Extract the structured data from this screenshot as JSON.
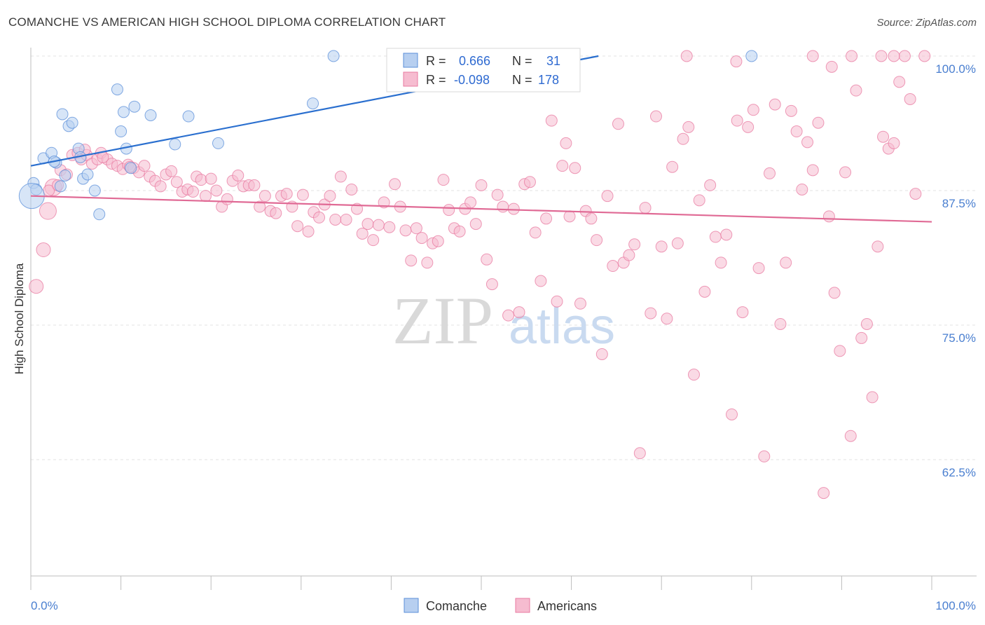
{
  "title": "COMANCHE VS AMERICAN HIGH SCHOOL DIPLOMA CORRELATION CHART",
  "source": "Source: ZipAtlas.com",
  "watermark": {
    "zip": "ZIP",
    "atlas": "atlas"
  },
  "colors": {
    "comanche": "#5b8fd9",
    "comanche_fill": "#b7cff0",
    "americans": "#e87aa0",
    "americans_fill": "#f6bcd0",
    "blue_text": "#2e6ad1",
    "pink_line": "#e06a95",
    "blue_line": "#2a6fcf"
  },
  "legend": {
    "r_label": "R =",
    "n_label": "N =",
    "rows": [
      {
        "series": "Comanche",
        "r": "0.666",
        "n": "31"
      },
      {
        "series": "Americans",
        "r": "-0.098",
        "n": "178"
      }
    ]
  },
  "bottom_legend": [
    "Comanche",
    "Americans"
  ],
  "chart_data": {
    "type": "scatter",
    "title": "COMANCHE VS AMERICAN HIGH SCHOOL DIPLOMA CORRELATION CHART",
    "xlabel": "",
    "ylabel": "High School Diploma",
    "xlim": [
      0,
      100
    ],
    "ylim": [
      50,
      101
    ],
    "x_tick_labels": [
      "0.0%",
      "100.0%"
    ],
    "y_ticks": [
      62.5,
      75.0,
      87.5,
      100.0
    ],
    "y_tick_labels": [
      "62.5%",
      "75.0%",
      "87.5%",
      "100.0%"
    ],
    "grid": true,
    "legend_position": "top-center",
    "series": [
      {
        "name": "Comanche",
        "r": 0.666,
        "n": 31,
        "trend": {
          "x": [
            0,
            63
          ],
          "y": [
            89.8,
            100.0
          ]
        },
        "points": [
          [
            0.3,
            88.2
          ],
          [
            0.6,
            87.6
          ],
          [
            1.4,
            90.5
          ],
          [
            2.3,
            91.0
          ],
          [
            2.8,
            90.1
          ],
          [
            3.3,
            87.9
          ],
          [
            3.5,
            94.6
          ],
          [
            3.8,
            88.9
          ],
          [
            4.2,
            93.5
          ],
          [
            4.6,
            93.8
          ],
          [
            5.3,
            91.4
          ],
          [
            5.5,
            90.6
          ],
          [
            5.8,
            88.6
          ],
          [
            6.3,
            89.0
          ],
          [
            7.1,
            87.5
          ],
          [
            7.6,
            85.3
          ],
          [
            9.6,
            96.9
          ],
          [
            10.0,
            93.0
          ],
          [
            10.3,
            94.8
          ],
          [
            10.6,
            91.4
          ],
          [
            11.1,
            89.6
          ],
          [
            11.5,
            95.3
          ],
          [
            13.3,
            94.5
          ],
          [
            16.0,
            91.8
          ],
          [
            17.5,
            94.4
          ],
          [
            20.8,
            91.9
          ],
          [
            31.3,
            95.6
          ],
          [
            33.6,
            100.0
          ],
          [
            80.0,
            100.0
          ],
          [
            0.1,
            87.0
          ],
          [
            2.6,
            90.2
          ]
        ]
      },
      {
        "name": "Americans",
        "r": -0.098,
        "n": 178,
        "trend": {
          "x": [
            0,
            100
          ],
          "y": [
            87.0,
            84.6
          ]
        },
        "points": [
          [
            0.6,
            78.6
          ],
          [
            1.4,
            82.0
          ],
          [
            1.9,
            85.6
          ],
          [
            2.5,
            87.8
          ],
          [
            3.3,
            89.4
          ],
          [
            4.0,
            89.0
          ],
          [
            4.6,
            90.8
          ],
          [
            5.2,
            91.0
          ],
          [
            5.6,
            90.4
          ],
          [
            6.2,
            90.8
          ],
          [
            6.8,
            90.0
          ],
          [
            7.4,
            90.4
          ],
          [
            7.8,
            91.0
          ],
          [
            8.5,
            90.4
          ],
          [
            9.0,
            90.0
          ],
          [
            9.6,
            89.8
          ],
          [
            10.2,
            89.5
          ],
          [
            10.8,
            89.9
          ],
          [
            11.4,
            89.6
          ],
          [
            12.0,
            89.2
          ],
          [
            12.6,
            89.8
          ],
          [
            13.2,
            88.8
          ],
          [
            13.8,
            88.4
          ],
          [
            14.4,
            87.9
          ],
          [
            15.0,
            89.0
          ],
          [
            15.6,
            89.3
          ],
          [
            16.2,
            88.3
          ],
          [
            16.8,
            87.4
          ],
          [
            17.4,
            87.6
          ],
          [
            18.0,
            87.4
          ],
          [
            18.4,
            88.8
          ],
          [
            18.9,
            88.5
          ],
          [
            19.4,
            87.0
          ],
          [
            20.0,
            88.6
          ],
          [
            20.6,
            87.5
          ],
          [
            21.2,
            86.0
          ],
          [
            21.8,
            86.7
          ],
          [
            22.4,
            88.4
          ],
          [
            23.0,
            88.9
          ],
          [
            23.6,
            87.9
          ],
          [
            24.2,
            88.0
          ],
          [
            24.8,
            88.0
          ],
          [
            25.4,
            86.0
          ],
          [
            26.0,
            87.0
          ],
          [
            26.6,
            85.6
          ],
          [
            27.2,
            85.4
          ],
          [
            27.8,
            87.0
          ],
          [
            28.4,
            87.2
          ],
          [
            29.0,
            86.0
          ],
          [
            29.6,
            84.2
          ],
          [
            30.2,
            87.1
          ],
          [
            30.8,
            83.7
          ],
          [
            31.4,
            85.5
          ],
          [
            32.0,
            85.0
          ],
          [
            32.6,
            86.2
          ],
          [
            33.2,
            87.0
          ],
          [
            33.8,
            84.8
          ],
          [
            34.4,
            88.8
          ],
          [
            35.0,
            84.8
          ],
          [
            35.6,
            87.6
          ],
          [
            36.2,
            85.8
          ],
          [
            36.8,
            83.5
          ],
          [
            37.4,
            84.4
          ],
          [
            38.0,
            82.9
          ],
          [
            38.6,
            84.3
          ],
          [
            39.2,
            86.4
          ],
          [
            39.8,
            84.1
          ],
          [
            40.4,
            88.1
          ],
          [
            41.0,
            86.0
          ],
          [
            41.6,
            83.8
          ],
          [
            42.2,
            81.0
          ],
          [
            42.8,
            84.0
          ],
          [
            43.4,
            83.1
          ],
          [
            44.0,
            80.8
          ],
          [
            44.6,
            82.6
          ],
          [
            45.2,
            82.8
          ],
          [
            45.8,
            88.5
          ],
          [
            46.4,
            85.7
          ],
          [
            47.0,
            84.0
          ],
          [
            47.6,
            83.7
          ],
          [
            48.2,
            85.8
          ],
          [
            48.8,
            86.4
          ],
          [
            49.4,
            84.4
          ],
          [
            50.0,
            88.0
          ],
          [
            50.6,
            81.1
          ],
          [
            51.2,
            78.8
          ],
          [
            51.8,
            87.1
          ],
          [
            52.4,
            86.0
          ],
          [
            53.0,
            75.9
          ],
          [
            53.6,
            85.8
          ],
          [
            54.2,
            76.2
          ],
          [
            54.8,
            88.1
          ],
          [
            55.4,
            88.3
          ],
          [
            56.0,
            83.6
          ],
          [
            56.6,
            79.1
          ],
          [
            57.2,
            84.9
          ],
          [
            57.8,
            94.0
          ],
          [
            58.4,
            77.2
          ],
          [
            59.0,
            89.8
          ],
          [
            59.4,
            91.9
          ],
          [
            59.8,
            85.1
          ],
          [
            60.4,
            89.6
          ],
          [
            61.0,
            77.0
          ],
          [
            61.6,
            85.6
          ],
          [
            62.2,
            84.9
          ],
          [
            62.8,
            82.9
          ],
          [
            63.4,
            72.3
          ],
          [
            64.0,
            87.0
          ],
          [
            64.6,
            80.5
          ],
          [
            65.2,
            93.7
          ],
          [
            65.8,
            80.8
          ],
          [
            66.4,
            81.5
          ],
          [
            67.0,
            82.5
          ],
          [
            67.6,
            63.1
          ],
          [
            68.2,
            85.9
          ],
          [
            68.8,
            76.1
          ],
          [
            69.4,
            94.4
          ],
          [
            70.0,
            82.3
          ],
          [
            70.6,
            75.6
          ],
          [
            71.2,
            89.7
          ],
          [
            71.8,
            82.6
          ],
          [
            72.4,
            92.3
          ],
          [
            73.0,
            93.4
          ],
          [
            73.6,
            70.4
          ],
          [
            74.2,
            86.6
          ],
          [
            74.8,
            78.1
          ],
          [
            75.4,
            88.0
          ],
          [
            76.0,
            83.2
          ],
          [
            76.6,
            80.8
          ],
          [
            77.2,
            83.4
          ],
          [
            77.8,
            66.7
          ],
          [
            78.4,
            94.0
          ],
          [
            79.0,
            76.2
          ],
          [
            79.6,
            93.4
          ],
          [
            80.2,
            95.0
          ],
          [
            80.8,
            80.3
          ],
          [
            81.4,
            62.8
          ],
          [
            82.0,
            89.1
          ],
          [
            82.6,
            95.5
          ],
          [
            83.2,
            75.1
          ],
          [
            83.8,
            80.8
          ],
          [
            84.4,
            94.9
          ],
          [
            85.0,
            93.0
          ],
          [
            85.6,
            87.6
          ],
          [
            86.2,
            92.0
          ],
          [
            86.8,
            89.4
          ],
          [
            87.4,
            93.8
          ],
          [
            88.0,
            59.4
          ],
          [
            88.6,
            85.1
          ],
          [
            89.2,
            78.0
          ],
          [
            89.8,
            72.6
          ],
          [
            90.4,
            89.2
          ],
          [
            91.0,
            64.7
          ],
          [
            91.6,
            96.8
          ],
          [
            92.2,
            73.8
          ],
          [
            92.8,
            75.1
          ],
          [
            93.4,
            68.3
          ],
          [
            94.0,
            82.3
          ],
          [
            94.6,
            92.5
          ],
          [
            95.2,
            91.4
          ],
          [
            95.8,
            91.9
          ],
          [
            96.4,
            97.6
          ],
          [
            97.0,
            100.0
          ],
          [
            97.6,
            96.0
          ],
          [
            98.2,
            87.2
          ],
          [
            72.8,
            100.0
          ],
          [
            78.3,
            99.5
          ],
          [
            86.8,
            100.0
          ],
          [
            91.1,
            100.0
          ],
          [
            94.4,
            100.0
          ],
          [
            95.8,
            100.0
          ],
          [
            99.2,
            100.0
          ],
          [
            88.9,
            99.0
          ],
          [
            2.0,
            87.5
          ],
          [
            3.0,
            88.0
          ],
          [
            6.0,
            91.3
          ],
          [
            8.0,
            90.6
          ],
          [
            11.0,
            89.7
          ]
        ]
      }
    ]
  }
}
